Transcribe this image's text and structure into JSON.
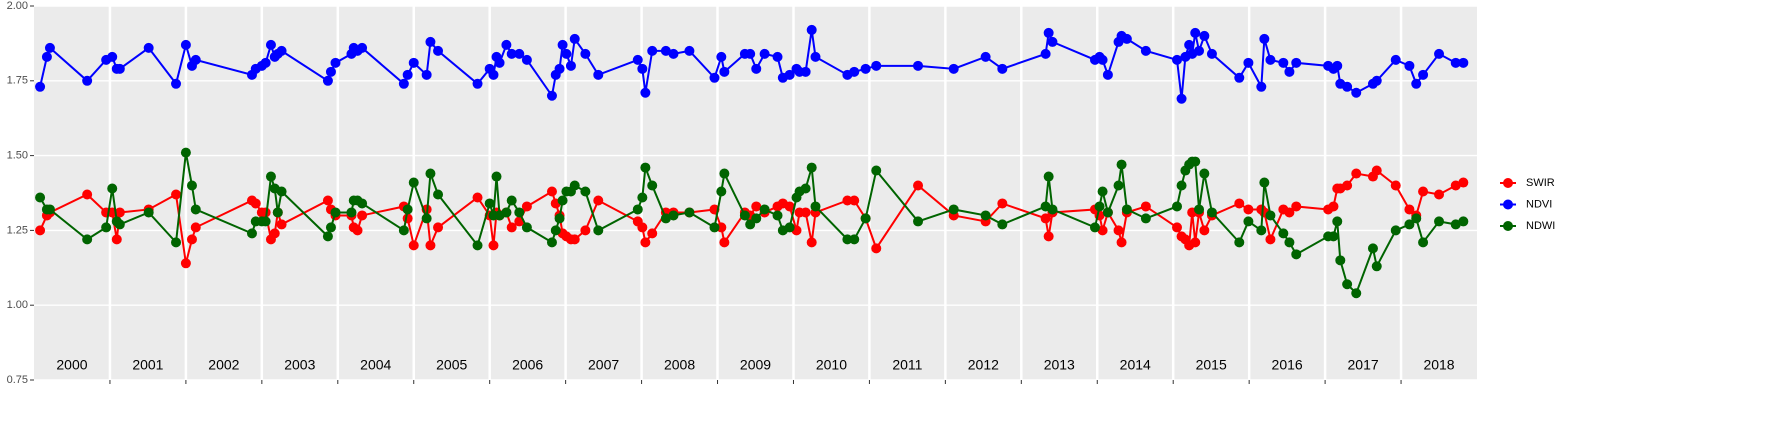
{
  "chart_data": {
    "type": "line",
    "x": [
      2000.08,
      2000.17,
      2000.21,
      2000.7,
      2000.95,
      2001.03,
      2001.09,
      2001.13,
      2001.51,
      2001.87,
      2002.0,
      2002.08,
      2002.13,
      2002.87,
      2002.92,
      2003.0,
      2003.05,
      2003.12,
      2003.17,
      2003.21,
      2003.26,
      2003.87,
      2003.91,
      2003.97,
      2004.18,
      2004.21,
      2004.26,
      2004.32,
      2004.87,
      2004.92,
      2005.0,
      2005.17,
      2005.22,
      2005.32,
      2005.84,
      2006.0,
      2006.05,
      2006.09,
      2006.13,
      2006.22,
      2006.29,
      2006.39,
      2006.49,
      2006.82,
      2006.87,
      2006.92,
      2006.96,
      2007.01,
      2007.07,
      2007.12,
      2007.26,
      2007.43,
      2007.95,
      2008.01,
      2008.05,
      2008.14,
      2008.32,
      2008.42,
      2008.63,
      2008.96,
      2009.05,
      2009.09,
      2009.36,
      2009.43,
      2009.51,
      2009.62,
      2009.79,
      2009.86,
      2009.95,
      2010.04,
      2010.08,
      2010.16,
      2010.24,
      2010.29,
      2010.71,
      2010.8,
      2010.95,
      2011.09,
      2011.64,
      2012.11,
      2012.53,
      2012.75,
      2013.32,
      2013.36,
      2013.41,
      2013.97,
      2014.03,
      2014.07,
      2014.14,
      2014.28,
      2014.32,
      2014.39,
      2014.64,
      2015.05,
      2015.11,
      2015.16,
      2015.21,
      2015.25,
      2015.29,
      2015.34,
      2015.41,
      2015.51,
      2015.87,
      2015.99,
      2016.16,
      2016.2,
      2016.28,
      2016.45,
      2016.53,
      2016.62,
      2017.04,
      2017.11,
      2017.16,
      2017.2,
      2017.29,
      2017.41,
      2017.63,
      2017.68,
      2017.93,
      2018.11,
      2018.2,
      2018.29,
      2018.5,
      2018.72,
      2018.82
    ],
    "series": [
      {
        "name": "SWIR",
        "color": "#ff0000",
        "values": [
          1.25,
          1.3,
          1.31,
          1.37,
          1.31,
          1.31,
          1.22,
          1.31,
          1.32,
          1.37,
          1.14,
          1.22,
          1.26,
          1.35,
          1.34,
          1.31,
          1.31,
          1.22,
          1.24,
          1.31,
          1.27,
          1.35,
          1.32,
          1.3,
          1.3,
          1.26,
          1.25,
          1.3,
          1.33,
          1.29,
          1.2,
          1.32,
          1.2,
          1.26,
          1.36,
          1.3,
          1.2,
          1.31,
          1.3,
          1.31,
          1.26,
          1.28,
          1.33,
          1.38,
          1.34,
          1.3,
          1.24,
          1.23,
          1.22,
          1.22,
          1.25,
          1.35,
          1.28,
          1.26,
          1.21,
          1.24,
          1.31,
          1.31,
          1.31,
          1.32,
          1.26,
          1.21,
          1.31,
          1.3,
          1.33,
          1.31,
          1.33,
          1.34,
          1.33,
          1.25,
          1.31,
          1.31,
          1.21,
          1.31,
          1.35,
          1.35,
          1.29,
          1.19,
          1.4,
          1.3,
          1.28,
          1.34,
          1.29,
          1.23,
          1.31,
          1.32,
          1.3,
          1.25,
          1.31,
          1.25,
          1.21,
          1.31,
          1.33,
          1.26,
          1.23,
          1.22,
          1.2,
          1.31,
          1.21,
          1.31,
          1.25,
          1.3,
          1.34,
          1.32,
          1.32,
          1.31,
          1.22,
          1.32,
          1.31,
          1.33,
          1.32,
          1.33,
          1.39,
          1.39,
          1.4,
          1.44,
          1.43,
          1.45,
          1.4,
          1.32,
          1.3,
          1.38,
          1.37,
          1.4,
          1.41
        ]
      },
      {
        "name": "NDVI",
        "color": "#0000ff",
        "values": [
          1.73,
          1.83,
          1.86,
          1.75,
          1.82,
          1.83,
          1.79,
          1.79,
          1.86,
          1.74,
          1.87,
          1.8,
          1.82,
          1.77,
          1.79,
          1.8,
          1.81,
          1.87,
          1.83,
          1.84,
          1.85,
          1.75,
          1.78,
          1.81,
          1.84,
          1.86,
          1.85,
          1.86,
          1.74,
          1.77,
          1.81,
          1.77,
          1.88,
          1.85,
          1.74,
          1.79,
          1.77,
          1.83,
          1.81,
          1.87,
          1.84,
          1.84,
          1.82,
          1.7,
          1.77,
          1.79,
          1.87,
          1.84,
          1.8,
          1.89,
          1.84,
          1.77,
          1.82,
          1.79,
          1.71,
          1.85,
          1.85,
          1.84,
          1.85,
          1.76,
          1.83,
          1.78,
          1.84,
          1.84,
          1.79,
          1.84,
          1.83,
          1.76,
          1.77,
          1.79,
          1.78,
          1.78,
          1.92,
          1.83,
          1.77,
          1.78,
          1.79,
          1.8,
          1.8,
          1.79,
          1.83,
          1.79,
          1.84,
          1.91,
          1.88,
          1.82,
          1.83,
          1.82,
          1.77,
          1.88,
          1.9,
          1.89,
          1.85,
          1.82,
          1.69,
          1.83,
          1.87,
          1.84,
          1.91,
          1.85,
          1.9,
          1.84,
          1.76,
          1.81,
          1.73,
          1.89,
          1.82,
          1.81,
          1.78,
          1.81,
          1.8,
          1.79,
          1.8,
          1.74,
          1.73,
          1.71,
          1.74,
          1.75,
          1.82,
          1.8,
          1.74,
          1.77,
          1.84,
          1.81,
          1.81
        ]
      },
      {
        "name": "NDWI",
        "color": "#006400",
        "values": [
          1.36,
          1.32,
          1.32,
          1.22,
          1.26,
          1.39,
          1.28,
          1.27,
          1.31,
          1.21,
          1.51,
          1.4,
          1.32,
          1.24,
          1.28,
          1.28,
          1.28,
          1.43,
          1.39,
          1.31,
          1.38,
          1.23,
          1.26,
          1.31,
          1.31,
          1.35,
          1.35,
          1.34,
          1.25,
          1.32,
          1.41,
          1.29,
          1.44,
          1.37,
          1.2,
          1.34,
          1.3,
          1.43,
          1.3,
          1.31,
          1.35,
          1.31,
          1.26,
          1.21,
          1.25,
          1.29,
          1.35,
          1.38,
          1.38,
          1.4,
          1.38,
          1.25,
          1.32,
          1.36,
          1.46,
          1.4,
          1.29,
          1.3,
          1.31,
          1.26,
          1.38,
          1.44,
          1.3,
          1.27,
          1.29,
          1.32,
          1.3,
          1.25,
          1.26,
          1.36,
          1.38,
          1.39,
          1.46,
          1.33,
          1.22,
          1.22,
          1.29,
          1.45,
          1.28,
          1.32,
          1.3,
          1.27,
          1.33,
          1.43,
          1.32,
          1.26,
          1.33,
          1.38,
          1.31,
          1.4,
          1.47,
          1.32,
          1.29,
          1.33,
          1.4,
          1.45,
          1.47,
          1.48,
          1.48,
          1.32,
          1.44,
          1.31,
          1.21,
          1.28,
          1.25,
          1.41,
          1.3,
          1.24,
          1.21,
          1.17,
          1.23,
          1.23,
          1.28,
          1.15,
          1.07,
          1.04,
          1.19,
          1.13,
          1.25,
          1.27,
          1.29,
          1.21,
          1.28,
          1.27,
          1.28
        ]
      }
    ],
    "xlim": [
      2000,
      2019
    ],
    "xticks": [
      2001,
      2002,
      2003,
      2004,
      2005,
      2006,
      2007,
      2008,
      2009,
      2010,
      2011,
      2012,
      2013,
      2014,
      2015,
      2016,
      2017,
      2018
    ],
    "ylim": [
      0.75,
      2.0
    ],
    "yticks": [
      {
        "value": 0.75,
        "label": "0.75"
      },
      {
        "value": 1.0,
        "label": "1.00"
      },
      {
        "value": 1.25,
        "label": "1.25"
      },
      {
        "value": 1.5,
        "label": "1.50"
      },
      {
        "value": 1.75,
        "label": "1.75"
      },
      {
        "value": 2.0,
        "label": "2.00"
      }
    ],
    "annotations": [
      {
        "text": "2000",
        "x": 2000.5
      },
      {
        "text": "2001",
        "x": 2001.5
      },
      {
        "text": "2002",
        "x": 2002.5
      },
      {
        "text": "2003",
        "x": 2003.5
      },
      {
        "text": "2004",
        "x": 2004.5
      },
      {
        "text": "2005",
        "x": 2005.5
      },
      {
        "text": "2006",
        "x": 2006.5
      },
      {
        "text": "2007",
        "x": 2007.5
      },
      {
        "text": "2008",
        "x": 2008.5
      },
      {
        "text": "2009",
        "x": 2009.5
      },
      {
        "text": "2010",
        "x": 2010.5
      },
      {
        "text": "2011",
        "x": 2011.5
      },
      {
        "text": "2012",
        "x": 2012.5
      },
      {
        "text": "2013",
        "x": 2013.5
      },
      {
        "text": "2014",
        "x": 2014.5
      },
      {
        "text": "2015",
        "x": 2015.5
      },
      {
        "text": "2016",
        "x": 2016.5
      },
      {
        "text": "2017",
        "x": 2017.5
      },
      {
        "text": "2018",
        "x": 2018.5
      }
    ],
    "grid": true,
    "legend": "right"
  }
}
